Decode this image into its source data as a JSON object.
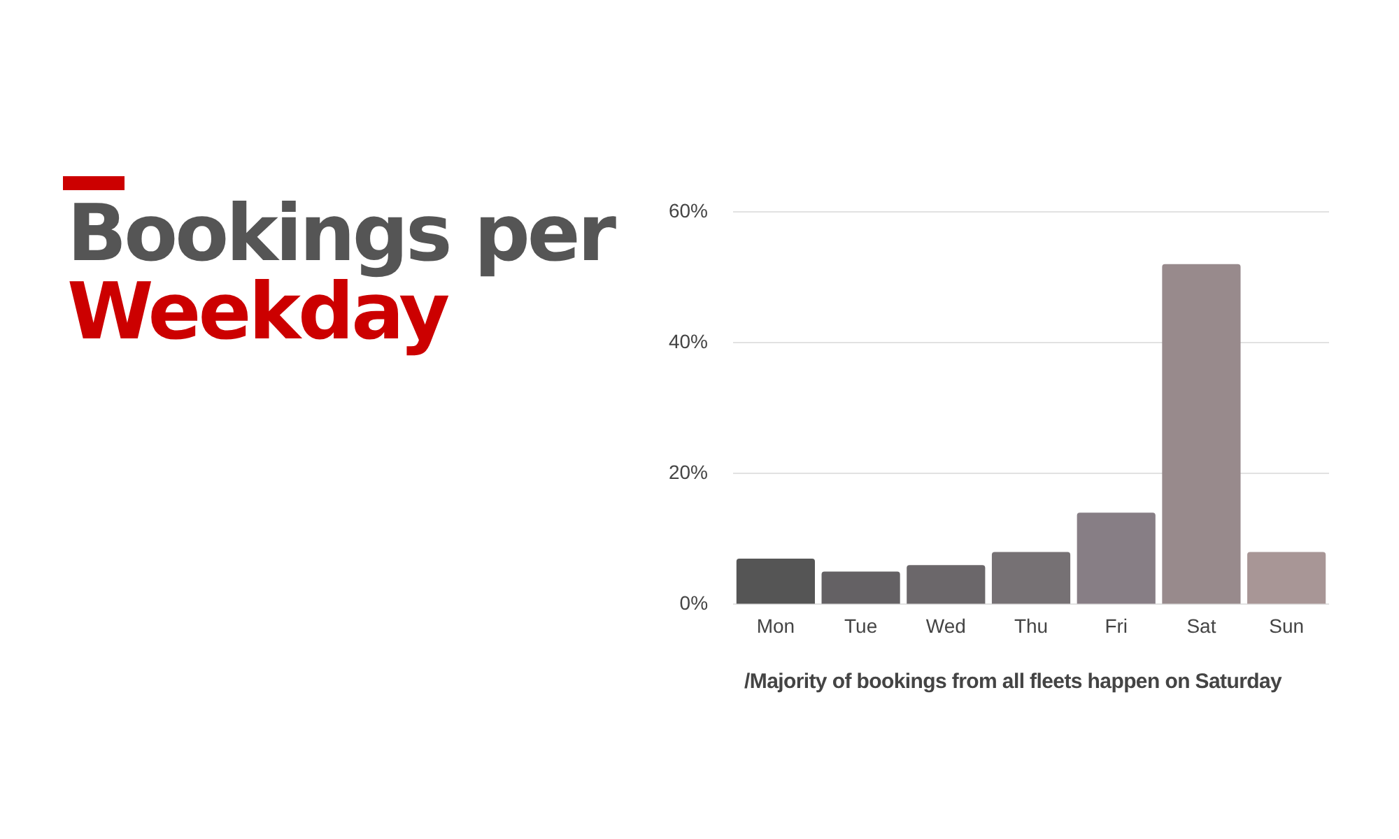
{
  "chart_data": {
    "type": "bar",
    "title": "Bookings per Weekday",
    "categories": [
      "Mon",
      "Tue",
      "Wed",
      "Thu",
      "Fri",
      "Sat",
      "Sun"
    ],
    "values": [
      7,
      5,
      6,
      8,
      14,
      52,
      8
    ],
    "colors": [
      "#555555",
      "#646164",
      "#6b676a",
      "#767174",
      "#877e85",
      "#988a8c",
      "#a89696"
    ],
    "ylim": [
      0,
      60
    ],
    "yticks": [
      {
        "value": 0,
        "label": "0%"
      },
      {
        "value": 20,
        "label": "20%"
      },
      {
        "value": 40,
        "label": "40%"
      },
      {
        "value": 60,
        "label": "60%"
      }
    ],
    "grid": "y",
    "annotations": [
      "/Majority of bookings from all fleets happen on Saturday"
    ]
  }
}
